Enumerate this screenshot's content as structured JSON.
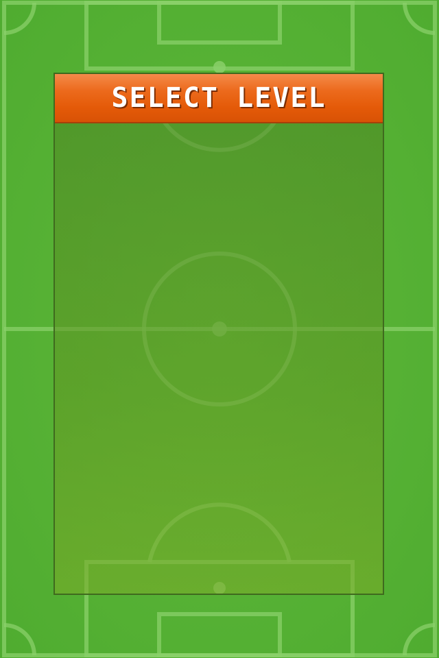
{
  "screen": {
    "title": "SELECT LEVEL"
  },
  "colors": {
    "grass": "#5db83a",
    "line": "#8fd56b",
    "header": "#e45a08",
    "panel_border": "#3f6a1e"
  }
}
